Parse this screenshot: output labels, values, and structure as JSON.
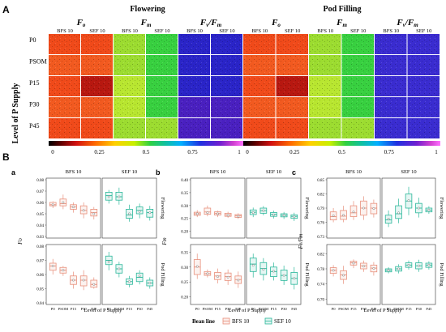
{
  "panel_A": {
    "letter": "A",
    "y_axis_label": "Level of P Supply",
    "row_labels": [
      "P0",
      "PSOM",
      "P15",
      "P30",
      "P45"
    ],
    "stage_titles": [
      "Flowering",
      "Pod Filling"
    ],
    "metrics": [
      {
        "main": "F",
        "sub": "o",
        "slash": "",
        "main2": "",
        "sub2": ""
      },
      {
        "main": "F",
        "sub": "m",
        "slash": "",
        "main2": "",
        "sub2": ""
      },
      {
        "main": "F",
        "sub": "v",
        "slash": "/",
        "main2": "F",
        "sub2": "m"
      }
    ],
    "line_labels": [
      "BFS 10",
      "SEF 10"
    ],
    "colorbar_ticks": [
      "0",
      "0.25",
      "0.5",
      "0.75",
      "1"
    ],
    "colors": {
      "fo": "#f0501c",
      "fm": "#7fdc2c",
      "fvfm": "#3a28c8"
    }
  },
  "panel_B": {
    "letter": "B",
    "legend_title": "Bean line",
    "legend_items": [
      "BFS 10",
      "SEF 10"
    ],
    "series_colors": {
      "BFS 10": "#e8907c",
      "SEF 10": "#2ab79a"
    },
    "x_label": "Level of P Supply"
  },
  "chart_data": [
    {
      "type": "box",
      "panel": "a",
      "ylabel": "Fo",
      "facets_columns": [
        "BFS 10",
        "SEF 10"
      ],
      "facets_rows": [
        "Flowering",
        "Pod Filling"
      ],
      "categories": [
        "P0",
        "PSOM",
        "P15",
        "P30",
        "P45"
      ],
      "rows": [
        {
          "name": "Flowering",
          "yticks": [
            0.03,
            0.04,
            0.05,
            0.06,
            0.07,
            0.08
          ],
          "ylim": [
            0.03,
            0.08
          ],
          "series": [
            {
              "name": "BFS 10",
              "boxes": [
                [
                  0.055,
                  0.057,
                  0.058,
                  0.06,
                  0.061
                ],
                [
                  0.054,
                  0.057,
                  0.059,
                  0.063,
                  0.067
                ],
                [
                  0.051,
                  0.054,
                  0.056,
                  0.058,
                  0.06
                ],
                [
                  0.046,
                  0.05,
                  0.053,
                  0.057,
                  0.06
                ],
                [
                  0.045,
                  0.048,
                  0.051,
                  0.054,
                  0.056
                ]
              ],
              "means": [
                0.058,
                0.06,
                0.056,
                0.053,
                0.05
              ]
            },
            {
              "name": "SEF 10",
              "boxes": [
                [
                  0.059,
                  0.062,
                  0.066,
                  0.069,
                  0.071
                ],
                [
                  0.058,
                  0.062,
                  0.065,
                  0.069,
                  0.073
                ],
                [
                  0.043,
                  0.046,
                  0.049,
                  0.054,
                  0.058
                ],
                [
                  0.046,
                  0.05,
                  0.053,
                  0.056,
                  0.059
                ],
                [
                  0.044,
                  0.047,
                  0.051,
                  0.054,
                  0.057
                ]
              ],
              "means": [
                0.065,
                0.065,
                0.05,
                0.052,
                0.051
              ]
            }
          ]
        },
        {
          "name": "Pod Filling",
          "yticks": [
            0.04,
            0.05,
            0.06,
            0.07,
            0.08
          ],
          "ylim": [
            0.04,
            0.08
          ],
          "series": [
            {
              "name": "BFS 10",
              "boxes": [
                [
                  0.06,
                  0.063,
                  0.066,
                  0.068,
                  0.071
                ],
                [
                  0.059,
                  0.061,
                  0.063,
                  0.065,
                  0.066
                ],
                [
                  0.05,
                  0.053,
                  0.056,
                  0.059,
                  0.062
                ],
                [
                  0.049,
                  0.052,
                  0.056,
                  0.059,
                  0.063
                ],
                [
                  0.05,
                  0.051,
                  0.053,
                  0.056,
                  0.058
                ]
              ],
              "means": [
                0.066,
                0.063,
                0.056,
                0.056,
                0.053
              ]
            },
            {
              "name": "SEF 10",
              "boxes": [
                [
                  0.063,
                  0.067,
                  0.07,
                  0.073,
                  0.076
                ],
                [
                  0.058,
                  0.061,
                  0.064,
                  0.067,
                  0.069
                ],
                [
                  0.051,
                  0.053,
                  0.055,
                  0.057,
                  0.059
                ],
                [
                  0.053,
                  0.055,
                  0.058,
                  0.061,
                  0.063
                ],
                [
                  0.05,
                  0.052,
                  0.054,
                  0.056,
                  0.058
                ]
              ],
              "means": [
                0.069,
                0.064,
                0.055,
                0.059,
                0.054
              ]
            }
          ]
        }
      ]
    },
    {
      "type": "box",
      "panel": "b",
      "ylabel": "Fm",
      "facets_columns": [
        "BFS 10",
        "SEF 10"
      ],
      "facets_rows": [
        "Flowering",
        "Pod Filling"
      ],
      "categories": [
        "P0",
        "PSOM",
        "P15",
        "P30",
        "P45"
      ],
      "rows": [
        {
          "name": "Flowering",
          "yticks": [
            0.2,
            0.25,
            0.3,
            0.35,
            0.4
          ],
          "ylim": [
            0.18,
            0.4
          ],
          "series": [
            {
              "name": "BFS 10",
              "boxes": [
                [
                  0.255,
                  0.262,
                  0.268,
                  0.274,
                  0.282
                ],
                [
                  0.258,
                  0.266,
                  0.275,
                  0.29,
                  0.3
                ],
                [
                  0.255,
                  0.263,
                  0.27,
                  0.276,
                  0.28
                ],
                [
                  0.252,
                  0.258,
                  0.264,
                  0.27,
                  0.276
                ],
                [
                  0.248,
                  0.254,
                  0.26,
                  0.265,
                  0.27
                ]
              ],
              "means": [
                0.268,
                0.272,
                0.268,
                0.262,
                0.258
              ]
            },
            {
              "name": "SEF 10",
              "boxes": [
                [
                  0.255,
                  0.265,
                  0.274,
                  0.283,
                  0.292
                ],
                [
                  0.262,
                  0.27,
                  0.28,
                  0.29,
                  0.298
                ],
                [
                  0.25,
                  0.258,
                  0.266,
                  0.273,
                  0.28
                ],
                [
                  0.248,
                  0.256,
                  0.262,
                  0.268,
                  0.275
                ],
                [
                  0.24,
                  0.25,
                  0.258,
                  0.264,
                  0.272
                ]
              ],
              "means": [
                0.272,
                0.28,
                0.264,
                0.262,
                0.256
              ]
            }
          ]
        },
        {
          "name": "Pod Filling",
          "yticks": [
            0.2,
            0.25,
            0.3,
            0.35
          ],
          "ylim": [
            0.18,
            0.37
          ],
          "series": [
            {
              "name": "BFS 10",
              "boxes": [
                [
                  0.26,
                  0.275,
                  0.3,
                  0.325,
                  0.345
                ],
                [
                  0.265,
                  0.272,
                  0.278,
                  0.285,
                  0.292
                ],
                [
                  0.245,
                  0.258,
                  0.27,
                  0.282,
                  0.295
                ],
                [
                  0.24,
                  0.255,
                  0.268,
                  0.28,
                  0.292
                ],
                [
                  0.23,
                  0.245,
                  0.258,
                  0.27,
                  0.285
                ]
              ],
              "means": [
                0.302,
                0.278,
                0.268,
                0.266,
                0.256
              ]
            },
            {
              "name": "SEF 10",
              "boxes": [
                [
                  0.265,
                  0.285,
                  0.31,
                  0.33,
                  0.345
                ],
                [
                  0.255,
                  0.275,
                  0.295,
                  0.315,
                  0.33
                ],
                [
                  0.255,
                  0.268,
                  0.285,
                  0.3,
                  0.315
                ],
                [
                  0.24,
                  0.255,
                  0.272,
                  0.29,
                  0.305
                ],
                [
                  0.225,
                  0.242,
                  0.262,
                  0.282,
                  0.3
                ]
              ],
              "means": [
                0.306,
                0.292,
                0.286,
                0.272,
                0.262
              ]
            }
          ]
        }
      ]
    },
    {
      "type": "box",
      "panel": "c",
      "ylabel": "Fv/Fm",
      "facets_columns": [
        "BFS 10",
        "SEF 10"
      ],
      "facets_rows": [
        "Flowering",
        "Pod Filling"
      ],
      "categories": [
        "P0",
        "PSOM",
        "P15",
        "P30",
        "P45"
      ],
      "rows": [
        {
          "name": "Flowering",
          "yticks": [
            0.73,
            0.76,
            0.79,
            0.82,
            0.85
          ],
          "ylim": [
            0.73,
            0.85
          ],
          "series": [
            {
              "name": "BFS 10",
              "boxes": [
                [
                  0.76,
                  0.765,
                  0.772,
                  0.782,
                  0.79
                ],
                [
                  0.76,
                  0.766,
                  0.773,
                  0.785,
                  0.795
                ],
                [
                  0.765,
                  0.772,
                  0.78,
                  0.795,
                  0.805
                ],
                [
                  0.765,
                  0.775,
                  0.79,
                  0.805,
                  0.815
                ],
                [
                  0.77,
                  0.778,
                  0.79,
                  0.8,
                  0.808
                ]
              ],
              "means": [
                0.774,
                0.775,
                0.782,
                0.79,
                0.789
              ]
            },
            {
              "name": "SEF 10",
              "boxes": [
                [
                  0.75,
                  0.758,
                  0.765,
                  0.775,
                  0.785
                ],
                [
                  0.758,
                  0.768,
                  0.778,
                  0.795,
                  0.81
                ],
                [
                  0.775,
                  0.79,
                  0.805,
                  0.82,
                  0.835
                ],
                [
                  0.77,
                  0.78,
                  0.79,
                  0.8,
                  0.812
                ],
                [
                  0.778,
                  0.782,
                  0.786,
                  0.79,
                  0.794
                ]
              ],
              "means": [
                0.767,
                0.78,
                0.806,
                0.79,
                0.786
              ]
            }
          ]
        },
        {
          "name": "Pod Filling",
          "yticks": [
            0.7,
            0.74,
            0.78,
            0.82
          ],
          "ylim": [
            0.69,
            0.84
          ],
          "series": [
            {
              "name": "BFS 10",
              "boxes": [
                [
                  0.76,
                  0.768,
                  0.776,
                  0.783,
                  0.79
                ],
                [
                  0.74,
                  0.752,
                  0.764,
                  0.775,
                  0.788
                ],
                [
                  0.782,
                  0.79,
                  0.796,
                  0.8,
                  0.805
                ],
                [
                  0.772,
                  0.78,
                  0.788,
                  0.795,
                  0.802
                ],
                [
                  0.762,
                  0.772,
                  0.782,
                  0.79,
                  0.798
                ]
              ],
              "means": [
                0.776,
                0.763,
                0.795,
                0.787,
                0.781
              ]
            },
            {
              "name": "SEF 10",
              "boxes": [
                [
                  0.768,
                  0.772,
                  0.776,
                  0.78,
                  0.784
                ],
                [
                  0.768,
                  0.774,
                  0.78,
                  0.786,
                  0.792
                ],
                [
                  0.778,
                  0.784,
                  0.79,
                  0.796,
                  0.802
                ],
                [
                  0.772,
                  0.78,
                  0.788,
                  0.796,
                  0.804
                ],
                [
                  0.778,
                  0.784,
                  0.79,
                  0.795,
                  0.8
                ]
              ],
              "means": [
                0.776,
                0.78,
                0.79,
                0.788,
                0.79
              ]
            }
          ]
        }
      ]
    }
  ]
}
